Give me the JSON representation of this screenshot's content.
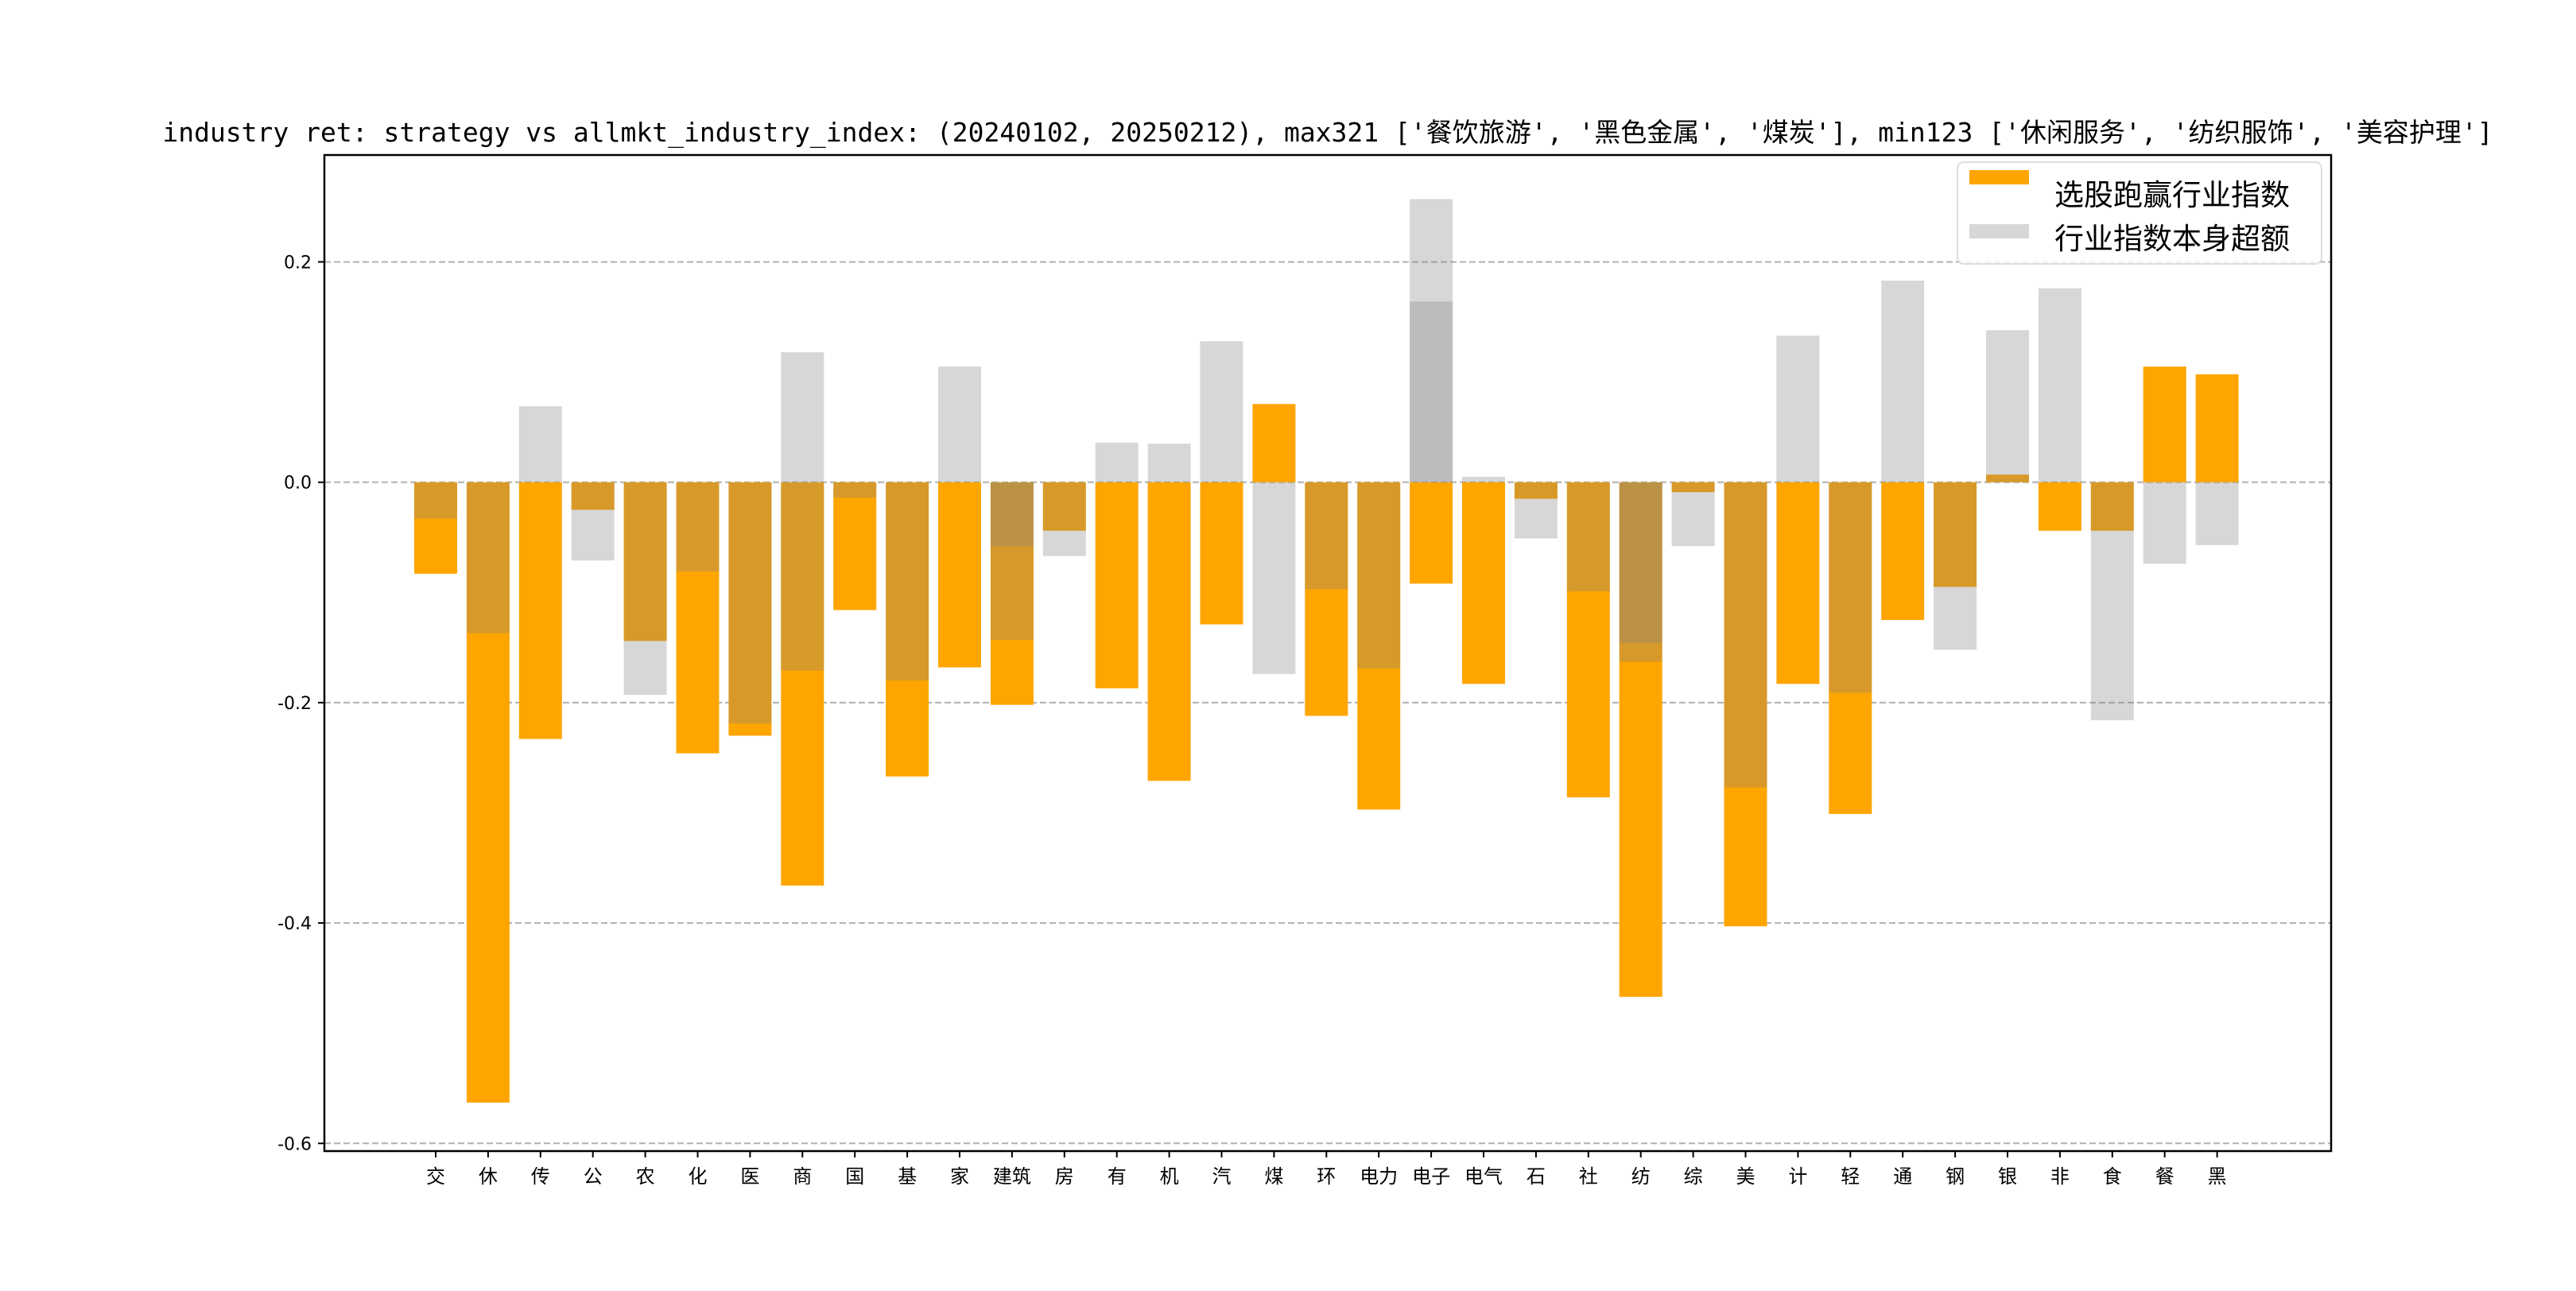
{
  "chart_data": {
    "type": "bar",
    "title": "industry ret: strategy vs allmkt_industry_index: (20240102, 20250212), max321 ['餐饮旅游', '黑色金属', '煤炭'], min123 ['休闲服务', '纺织服饰', '美容护理']",
    "xlabel": "",
    "ylabel": "",
    "ylim": [
      -0.607,
      0.297
    ],
    "yticks": [
      0.2,
      0.0,
      -0.2,
      -0.4,
      -0.6
    ],
    "ytick_labels": [
      "0.2",
      "0.0",
      "-0.2",
      "-0.4",
      "-0.6"
    ],
    "grid": "y dashed",
    "legend_position": "top-right",
    "categories": [
      "交",
      "休",
      "传",
      "公",
      "农",
      "化",
      "医",
      "商",
      "国",
      "基",
      "家",
      "建筑",
      "房",
      "有",
      "机",
      "汽",
      "煤",
      "环",
      "电力",
      "电子",
      "电气",
      "石",
      "社",
      "纺",
      "综",
      "美",
      "计",
      "轻",
      "通",
      "钢",
      "银",
      "非",
      "食",
      "餐",
      "黑"
    ],
    "series": [
      {
        "name": "选股跑赢行业指数",
        "color": "#FFA500",
        "values": [
          -0.083,
          -0.563,
          -0.233,
          -0.025,
          -0.144,
          -0.246,
          -0.23,
          -0.366,
          -0.116,
          -0.267,
          -0.168,
          -0.202,
          -0.044,
          -0.187,
          -0.271,
          -0.129,
          0.071,
          -0.212,
          -0.297,
          -0.092,
          -0.183,
          -0.015,
          -0.286,
          -0.467,
          -0.009,
          -0.403,
          -0.183,
          -0.301,
          -0.125,
          -0.095,
          0.007,
          -0.044,
          -0.044,
          0.105,
          0.098
        ]
      },
      {
        "name": "行业指数本身超额",
        "color": "#848484",
        "opacity": 0.32,
        "values": [
          [
            -0.033
          ],
          [
            -0.137
          ],
          [
            0.069
          ],
          [
            -0.071
          ],
          [
            -0.193
          ],
          [
            -0.081
          ],
          [
            -0.219
          ],
          [
            0.118,
            -0.171
          ],
          [
            -0.014
          ],
          [
            -0.18
          ],
          [
            0.105
          ],
          [
            -0.058,
            -0.143
          ],
          [
            -0.067
          ],
          [
            0.036
          ],
          [
            0.035
          ],
          [
            0.128
          ],
          [
            -0.174
          ],
          [
            -0.097
          ],
          [
            -0.169
          ],
          [
            0.257,
            0.164
          ],
          [
            0.005
          ],
          [
            -0.051
          ],
          [
            -0.099
          ],
          [
            -0.146,
            -0.163
          ],
          [
            -0.058
          ],
          [
            -0.277
          ],
          [
            0.133
          ],
          [
            -0.191
          ],
          [
            0.183
          ],
          [
            -0.152
          ],
          [
            0.138
          ],
          [
            0.176
          ],
          [
            -0.216
          ],
          [
            -0.074
          ],
          [
            -0.057
          ]
        ]
      }
    ]
  }
}
